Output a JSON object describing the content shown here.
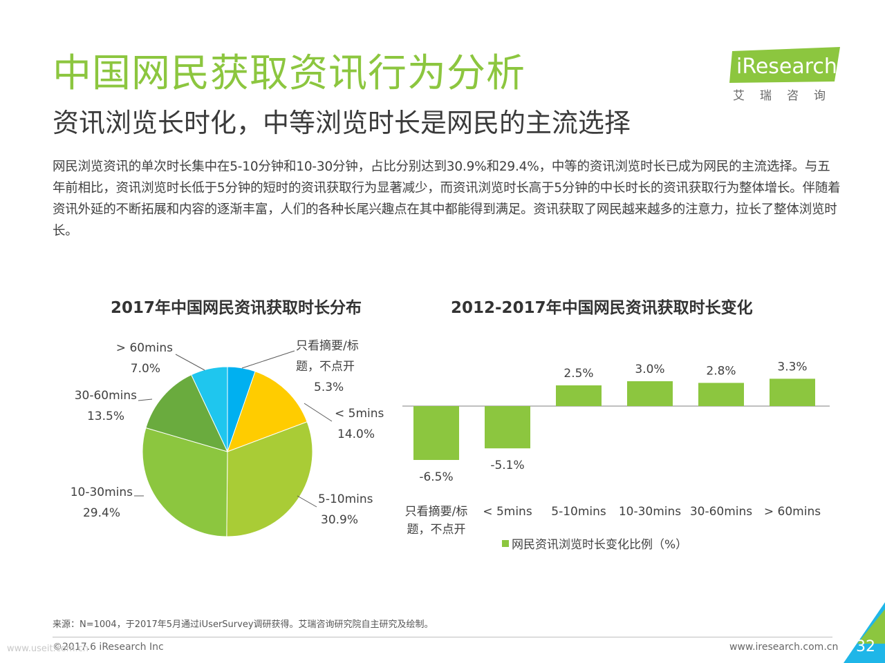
{
  "header": {
    "title": "中国网民获取资讯行为分析",
    "subtitle": "资讯浏览长时化，中等浏览时长是网民的主流选择",
    "description": "网民浏览资讯的单次时长集中在5-10分钟和10-30分钟，占比分别达到30.9%和29.4%，中等的资讯浏览时长已成为网民的主流选择。与五年前相比，资讯浏览时长低于5分钟的短时的资讯获取行为显著减少，而资讯浏览时长高于5分钟的中长时长的资讯获取行为整体增长。伴随着资讯外延的不断拓展和内容的逐渐丰富，人们的各种长尾兴趣点在其中都能得到满足。资讯获取了网民越来越多的注意力，拉长了整体浏览时长。"
  },
  "logo": {
    "text": "iResearch",
    "subtext": "艾瑞咨询"
  },
  "chart_data": [
    {
      "type": "pie",
      "title": "2017年中国网民资讯获取时长分布",
      "slices": [
        {
          "label": "只看摘要/标题，不点开",
          "label_lines": [
            "只看摘要/标",
            "题，不点开"
          ],
          "value": 5.3,
          "value_text": "5.3%",
          "color": "#00b0f0"
        },
        {
          "label": "< 5mins",
          "label_lines": [
            "< 5mins"
          ],
          "value": 14.0,
          "value_text": "14.0%",
          "color": "#ffcc00"
        },
        {
          "label": "5-10mins",
          "label_lines": [
            "5-10mins"
          ],
          "value": 30.9,
          "value_text": "30.9%",
          "color": "#a9cc36"
        },
        {
          "label": "10-30mins",
          "label_lines": [
            "10-30mins"
          ],
          "value": 29.4,
          "value_text": "29.4%",
          "color": "#8cc63f"
        },
        {
          "label": "30-60mins",
          "label_lines": [
            "30-60mins"
          ],
          "value": 13.5,
          "value_text": "13.5%",
          "color": "#6aab3e"
        },
        {
          "label": "> 60mins",
          "label_lines": [
            "> 60mins"
          ],
          "value": 7.0,
          "value_text": "7.0%",
          "color": "#1fc6ee"
        }
      ]
    },
    {
      "type": "bar",
      "title": "2012-2017年中国网民资讯获取时长变化",
      "categories": [
        "只看摘要/标题，不点开",
        "< 5mins",
        "5-10mins",
        "10-30mins",
        "30-60mins",
        "> 60mins"
      ],
      "category_lines": [
        [
          "只看摘要/标",
          "题，不点开"
        ],
        [
          "< 5mins"
        ],
        [
          "5-10mins"
        ],
        [
          "10-30mins"
        ],
        [
          "30-60mins"
        ],
        [
          "> 60mins"
        ]
      ],
      "series": [
        {
          "name": "网民资讯浏览时长变化比例（%）",
          "values": [
            -6.5,
            -5.1,
            2.5,
            3.0,
            2.8,
            3.3
          ],
          "value_labels": [
            "-6.5%",
            "-5.1%",
            "2.5%",
            "3.0%",
            "2.8%",
            "3.3%"
          ],
          "color": "#8cc63f"
        }
      ],
      "legend_position": "bottom"
    }
  ],
  "footer": {
    "source": "来源：N=1004，于2017年5月通过iUserSurvey调研获得。艾瑞咨询研究院自主研究及绘制。",
    "copyright": "©2017.6 iResearch Inc",
    "url": "www.iresearch.com.cn",
    "page": "32",
    "watermark": "www.useit.com.cn"
  }
}
